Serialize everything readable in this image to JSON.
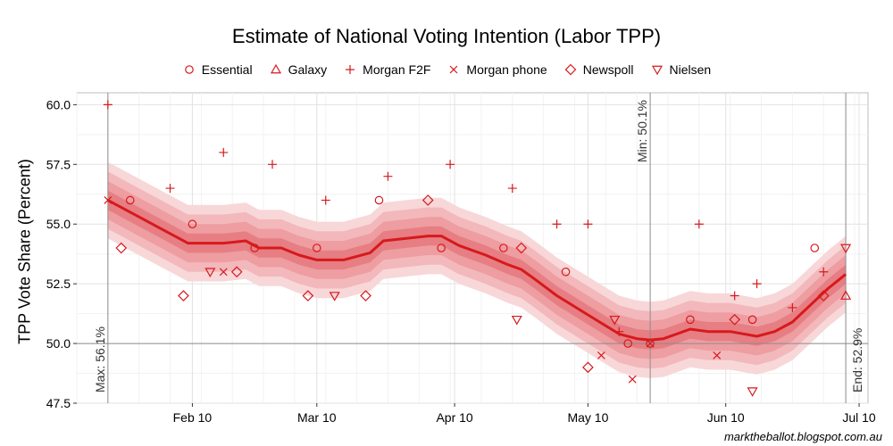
{
  "chart_data": {
    "type": "line",
    "title": "Estimate of National Voting Intention (Labor TPP)",
    "ylabel": "TPP Vote Share (Percent)",
    "xlabel": "",
    "ylim": [
      47.5,
      60.5
    ],
    "xlim": [
      "2013-01-15",
      "2013-07-12"
    ],
    "yticks": [
      47.5,
      50.0,
      52.5,
      55.0,
      57.5,
      60.0
    ],
    "ytick_labels": [
      "47.5",
      "50.0",
      "52.5",
      "55.0",
      "57.5",
      "60.0"
    ],
    "xticks": [
      {
        "date": "2013-02-10",
        "label": "Feb 10"
      },
      {
        "date": "2013-03-10",
        "label": "Mar 10"
      },
      {
        "date": "2013-04-10",
        "label": "Apr 10"
      },
      {
        "date": "2013-05-10",
        "label": "May 10"
      },
      {
        "date": "2013-06-10",
        "label": "Jun 10"
      },
      {
        "date": "2013-07-10",
        "label": "Jul 10"
      }
    ],
    "legend_position": "top",
    "grid": true,
    "color": "#d7191c",
    "hline": 50.0,
    "estimate": [
      {
        "x": "2013-01-22",
        "y": 56.0
      },
      {
        "x": "2013-01-27",
        "y": 55.5
      },
      {
        "x": "2013-02-01",
        "y": 55.0
      },
      {
        "x": "2013-02-06",
        "y": 54.5
      },
      {
        "x": "2013-02-09",
        "y": 54.2
      },
      {
        "x": "2013-02-13",
        "y": 54.2
      },
      {
        "x": "2013-02-17",
        "y": 54.2
      },
      {
        "x": "2013-02-22",
        "y": 54.3
      },
      {
        "x": "2013-02-25",
        "y": 54.0
      },
      {
        "x": "2013-03-02",
        "y": 54.0
      },
      {
        "x": "2013-03-06",
        "y": 53.7
      },
      {
        "x": "2013-03-10",
        "y": 53.5
      },
      {
        "x": "2013-03-16",
        "y": 53.5
      },
      {
        "x": "2013-03-22",
        "y": 53.8
      },
      {
        "x": "2013-03-25",
        "y": 54.3
      },
      {
        "x": "2013-04-04",
        "y": 54.5
      },
      {
        "x": "2013-04-07",
        "y": 54.5
      },
      {
        "x": "2013-04-11",
        "y": 54.1
      },
      {
        "x": "2013-04-17",
        "y": 53.7
      },
      {
        "x": "2013-04-22",
        "y": 53.3
      },
      {
        "x": "2013-04-25",
        "y": 53.1
      },
      {
        "x": "2013-04-28",
        "y": 52.7
      },
      {
        "x": "2013-05-03",
        "y": 52.0
      },
      {
        "x": "2013-05-10",
        "y": 51.2
      },
      {
        "x": "2013-05-17",
        "y": 50.4
      },
      {
        "x": "2013-05-21",
        "y": 50.2
      },
      {
        "x": "2013-05-24",
        "y": 50.15
      },
      {
        "x": "2013-05-27",
        "y": 50.2
      },
      {
        "x": "2013-06-02",
        "y": 50.6
      },
      {
        "x": "2013-06-06",
        "y": 50.5
      },
      {
        "x": "2013-06-11",
        "y": 50.5
      },
      {
        "x": "2013-06-17",
        "y": 50.3
      },
      {
        "x": "2013-06-21",
        "y": 50.5
      },
      {
        "x": "2013-06-25",
        "y": 50.9
      },
      {
        "x": "2013-06-29",
        "y": 51.6
      },
      {
        "x": "2013-07-03",
        "y": 52.3
      },
      {
        "x": "2013-07-07",
        "y": 52.9
      }
    ],
    "band_widths": [
      0.4,
      0.8,
      1.2,
      1.6
    ],
    "band_note": "",
    "annotations": [
      {
        "date": "2013-01-22",
        "label": "Max: 56.1%",
        "anchor": "bottom"
      },
      {
        "date": "2013-05-24",
        "label": "Min: 50.1%",
        "anchor": "top"
      },
      {
        "date": "2013-07-07",
        "label": "End: 52.9%",
        "anchor": "bottom-right"
      }
    ],
    "series": [
      {
        "name": "Essential",
        "marker": "circle",
        "points": [
          {
            "x": "2013-01-27",
            "y": 56.0
          },
          {
            "x": "2013-02-10",
            "y": 55.0
          },
          {
            "x": "2013-02-24",
            "y": 54.0
          },
          {
            "x": "2013-03-10",
            "y": 54.0
          },
          {
            "x": "2013-03-24",
            "y": 56.0
          },
          {
            "x": "2013-04-07",
            "y": 54.0
          },
          {
            "x": "2013-04-21",
            "y": 54.0
          },
          {
            "x": "2013-05-05",
            "y": 53.0
          },
          {
            "x": "2013-05-19",
            "y": 50.0
          },
          {
            "x": "2013-05-24",
            "y": 50.0
          },
          {
            "x": "2013-06-02",
            "y": 51.0
          },
          {
            "x": "2013-06-16",
            "y": 51.0
          },
          {
            "x": "2013-06-30",
            "y": 54.0
          }
        ]
      },
      {
        "name": "Galaxy",
        "marker": "triangle-up",
        "points": [
          {
            "x": "2013-07-07",
            "y": 52.0
          }
        ]
      },
      {
        "name": "Morgan F2F",
        "marker": "plus",
        "points": [
          {
            "x": "2013-01-22",
            "y": 60.0
          },
          {
            "x": "2013-02-05",
            "y": 56.5
          },
          {
            "x": "2013-02-17",
            "y": 58.0
          },
          {
            "x": "2013-02-28",
            "y": 57.5
          },
          {
            "x": "2013-03-12",
            "y": 56.0
          },
          {
            "x": "2013-03-26",
            "y": 57.0
          },
          {
            "x": "2013-04-09",
            "y": 57.5
          },
          {
            "x": "2013-04-23",
            "y": 56.5
          },
          {
            "x": "2013-05-03",
            "y": 55.0
          },
          {
            "x": "2013-05-10",
            "y": 55.0
          },
          {
            "x": "2013-05-17",
            "y": 50.5
          },
          {
            "x": "2013-06-04",
            "y": 55.0
          },
          {
            "x": "2013-06-12",
            "y": 52.0
          },
          {
            "x": "2013-06-17",
            "y": 52.5
          },
          {
            "x": "2013-06-25",
            "y": 51.5
          },
          {
            "x": "2013-07-02",
            "y": 53.0
          }
        ]
      },
      {
        "name": "Morgan phone",
        "marker": "cross",
        "points": [
          {
            "x": "2013-01-22",
            "y": 56.0
          },
          {
            "x": "2013-02-17",
            "y": 53.0
          },
          {
            "x": "2013-05-13",
            "y": 49.5
          },
          {
            "x": "2013-05-20",
            "y": 48.5
          },
          {
            "x": "2013-05-24",
            "y": 50.0
          },
          {
            "x": "2013-06-08",
            "y": 49.5
          }
        ]
      },
      {
        "name": "Newspoll",
        "marker": "diamond",
        "points": [
          {
            "x": "2013-01-25",
            "y": 54.0
          },
          {
            "x": "2013-02-08",
            "y": 52.0
          },
          {
            "x": "2013-02-20",
            "y": 53.0
          },
          {
            "x": "2013-03-08",
            "y": 52.0
          },
          {
            "x": "2013-03-21",
            "y": 52.0
          },
          {
            "x": "2013-04-04",
            "y": 56.0
          },
          {
            "x": "2013-04-25",
            "y": 54.0
          },
          {
            "x": "2013-05-10",
            "y": 49.0
          },
          {
            "x": "2013-06-12",
            "y": 51.0
          },
          {
            "x": "2013-07-02",
            "y": 52.0
          }
        ]
      },
      {
        "name": "Nielsen",
        "marker": "triangle-down",
        "points": [
          {
            "x": "2013-02-14",
            "y": 53.0
          },
          {
            "x": "2013-03-14",
            "y": 52.0
          },
          {
            "x": "2013-04-24",
            "y": 51.0
          },
          {
            "x": "2013-05-16",
            "y": 51.0
          },
          {
            "x": "2013-06-16",
            "y": 48.0
          },
          {
            "x": "2013-07-07",
            "y": 54.0
          }
        ]
      }
    ]
  },
  "credit": "marktheballot.blogspot.com.au"
}
